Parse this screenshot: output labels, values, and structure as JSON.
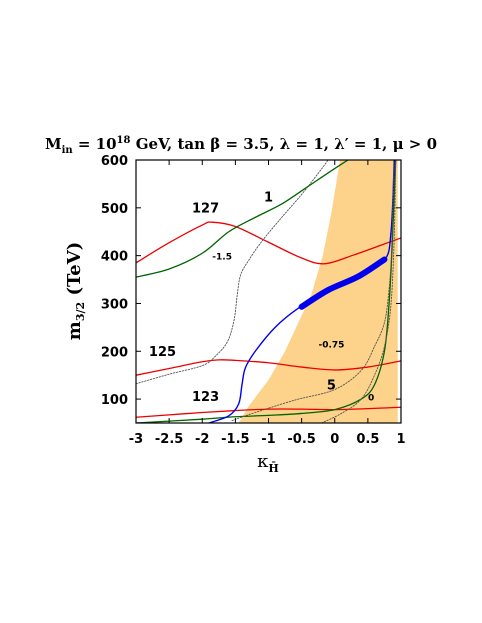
{
  "chart_data": {
    "type": "line",
    "title": {
      "m": "M",
      "m_sub": "in",
      "eq": " = 10",
      "exp": "18",
      "rest": " GeV, tan β = 3.5, λ = 1, λ′ = 1, μ > 0"
    },
    "ylabel": {
      "m": "m",
      "sub": "3/2",
      "rest": " (TeV)"
    },
    "xlabel": {
      "kappa": "κ",
      "sub": "H̄"
    },
    "xlim": [
      -3,
      1
    ],
    "ylim": [
      50,
      600
    ],
    "x_ticks": [
      "-3",
      "-2.5",
      "-2",
      "-1.5",
      "-1",
      "-0.5",
      "0",
      "0.5",
      "1"
    ],
    "y_ticks": [
      "100",
      "200",
      "300",
      "400",
      "500",
      "600"
    ],
    "colors": {
      "allowed_region": "#fdd28b",
      "higgs_mass": "#ee0000",
      "green_contour": "#006400",
      "blue_contour": "#0000ee",
      "dotted_contour": "#555555"
    },
    "shaded_region": {
      "name": "allowed-region",
      "points": [
        [
          -1.45,
          50
        ],
        [
          -1.3,
          85
        ],
        [
          -1.0,
          140
        ],
        [
          -0.75,
          200
        ],
        [
          -0.55,
          260
        ],
        [
          -0.35,
          320
        ],
        [
          -0.18,
          400
        ],
        [
          -0.05,
          490
        ],
        [
          0.08,
          600
        ],
        [
          0.95,
          600
        ],
        [
          0.95,
          50
        ]
      ]
    },
    "series": [
      {
        "kind": "higgs",
        "points": [
          [
            -3,
            62
          ],
          [
            -2.5,
            67
          ],
          [
            -2,
            72
          ],
          [
            -1.5,
            76
          ],
          [
            -1,
            79
          ],
          [
            -0.5,
            79
          ],
          [
            0,
            78
          ],
          [
            0.5,
            80
          ],
          [
            1,
            83
          ]
        ]
      },
      {
        "kind": "higgs",
        "points": [
          [
            -3,
            150
          ],
          [
            -2.5,
            164
          ],
          [
            -2,
            178
          ],
          [
            -1.75,
            182
          ],
          [
            -1.5,
            181
          ],
          [
            -1,
            176
          ],
          [
            -0.5,
            167
          ],
          [
            0,
            161
          ],
          [
            0.5,
            167
          ],
          [
            1,
            180
          ]
        ]
      },
      {
        "kind": "higgs",
        "points": [
          [
            -3,
            385
          ],
          [
            -2.5,
            427
          ],
          [
            -2,
            464
          ],
          [
            -1.85,
            470
          ],
          [
            -1.5,
            461
          ],
          [
            -1,
            428
          ],
          [
            -0.5,
            395
          ],
          [
            -0.15,
            383
          ],
          [
            0.3,
            402
          ],
          [
            0.7,
            422
          ],
          [
            1,
            437
          ]
        ]
      },
      {
        "kind": "green",
        "points": [
          [
            -3,
            355
          ],
          [
            -2.5,
            372
          ],
          [
            -2,
            405
          ],
          [
            -1.6,
            450
          ],
          [
            -1.2,
            480
          ],
          [
            -0.8,
            508
          ],
          [
            -0.4,
            545
          ],
          [
            -0.1,
            573
          ],
          [
            0.2,
            600
          ]
        ]
      },
      {
        "kind": "green",
        "points": [
          [
            -3,
            50
          ],
          [
            -2,
            58
          ],
          [
            -1.5,
            63
          ],
          [
            -1,
            66
          ],
          [
            -0.5,
            70
          ],
          [
            0,
            78
          ],
          [
            0.4,
            100
          ],
          [
            0.6,
            130
          ],
          [
            0.75,
            200
          ],
          [
            0.82,
            300
          ],
          [
            0.86,
            400
          ],
          [
            0.89,
            500
          ],
          [
            0.92,
            600
          ]
        ]
      },
      {
        "kind": "blue",
        "points": [
          [
            -1.9,
            50
          ],
          [
            -1.6,
            65
          ],
          [
            -1.45,
            90
          ],
          [
            -1.4,
            130
          ],
          [
            -1.35,
            165
          ],
          [
            -1.2,
            200
          ],
          [
            -0.9,
            250
          ],
          [
            -0.55,
            290
          ],
          [
            -0.1,
            327
          ],
          [
            0.35,
            355
          ],
          [
            0.75,
            390
          ],
          [
            0.85,
            450
          ],
          [
            0.9,
            600
          ]
        ]
      },
      {
        "kind": "blue-thick",
        "points": [
          [
            -0.5,
            293
          ],
          [
            -0.1,
            328
          ],
          [
            0.35,
            356
          ],
          [
            0.75,
            392
          ]
        ]
      },
      {
        "kind": "dotted",
        "points": [
          [
            -3,
            132
          ],
          [
            -2.5,
            152
          ],
          [
            -2,
            170
          ],
          [
            -1.8,
            190
          ],
          [
            -1.62,
            220
          ],
          [
            -1.52,
            265
          ],
          [
            -1.47,
            320
          ],
          [
            -1.42,
            360
          ],
          [
            -1.3,
            390
          ],
          [
            -1.1,
            430
          ],
          [
            -0.8,
            480
          ],
          [
            -0.5,
            528
          ],
          [
            -0.25,
            572
          ],
          [
            -0.1,
            600
          ]
        ]
      },
      {
        "kind": "dotted",
        "points": [
          [
            -1.55,
            55
          ],
          [
            -1.2,
            72
          ],
          [
            -0.6,
            98
          ],
          [
            0,
            120
          ],
          [
            0.4,
            160
          ],
          [
            0.6,
            210
          ],
          [
            0.75,
            260
          ],
          [
            0.82,
            330
          ],
          [
            0.86,
            420
          ],
          [
            0.89,
            600
          ]
        ]
      },
      {
        "kind": "dotted",
        "points": [
          [
            -0.2,
            50
          ],
          [
            0.1,
            70
          ],
          [
            0.4,
            100
          ],
          [
            0.6,
            150
          ],
          [
            0.75,
            210
          ],
          [
            0.85,
            300
          ],
          [
            0.9,
            450
          ],
          [
            0.92,
            600
          ]
        ]
      }
    ],
    "annotations": [
      {
        "text": "127",
        "x": -1.95,
        "y": 490,
        "size": "big"
      },
      {
        "text": "1",
        "x": -1.0,
        "y": 513,
        "size": "big"
      },
      {
        "text": "-1.5",
        "x": -1.7,
        "y": 392,
        "size": "small"
      },
      {
        "text": "125",
        "x": -2.6,
        "y": 190,
        "size": "big"
      },
      {
        "text": "-0.75",
        "x": -0.05,
        "y": 208,
        "size": "small"
      },
      {
        "text": "5",
        "x": -0.05,
        "y": 120,
        "size": "big"
      },
      {
        "text": "123",
        "x": -1.95,
        "y": 96,
        "size": "big"
      },
      {
        "text": "0",
        "x": 0.55,
        "y": 97,
        "size": "small"
      }
    ]
  }
}
